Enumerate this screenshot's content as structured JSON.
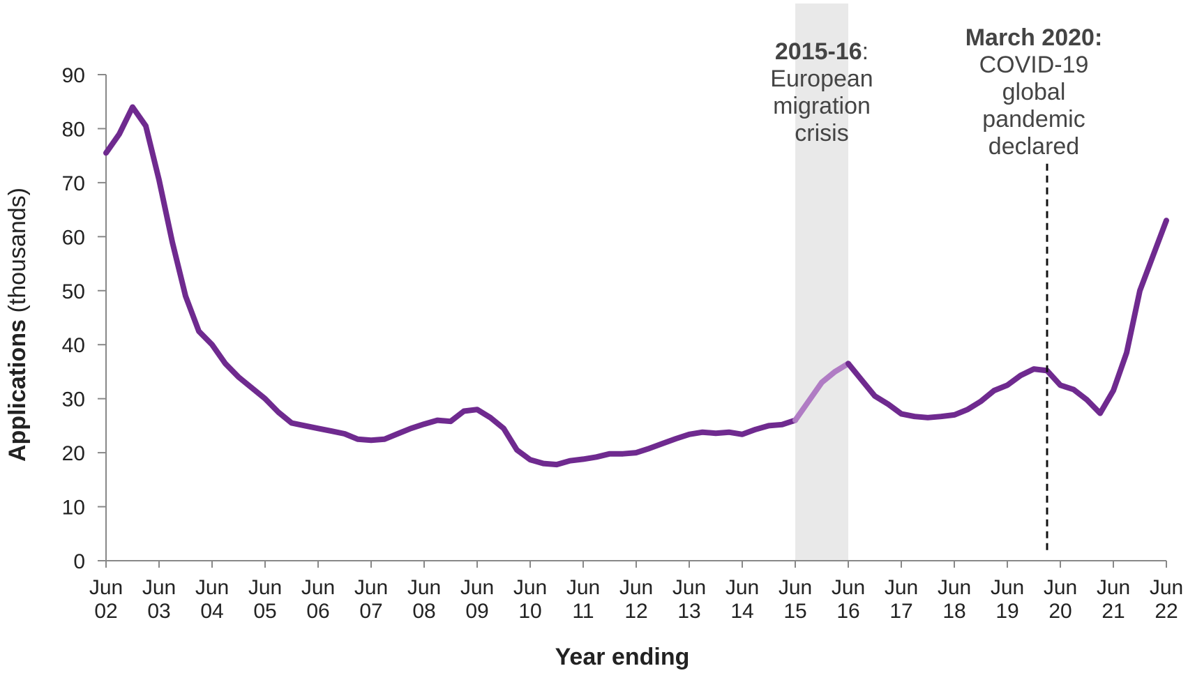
{
  "chart_data": {
    "type": "line",
    "title": "",
    "xlabel": "Year ending",
    "ylabel_bold": "Applications",
    "ylabel_rest": " (thousands)",
    "ylim": [
      0,
      90
    ],
    "yticks": [
      0,
      10,
      20,
      30,
      40,
      50,
      60,
      70,
      80,
      90
    ],
    "xlim": [
      2002.5,
      2022.5
    ],
    "xticks": [
      {
        "x": 2002.5,
        "line1": "Jun",
        "line2": "02"
      },
      {
        "x": 2003.5,
        "line1": "Jun",
        "line2": "03"
      },
      {
        "x": 2004.5,
        "line1": "Jun",
        "line2": "04"
      },
      {
        "x": 2005.5,
        "line1": "Jun",
        "line2": "05"
      },
      {
        "x": 2006.5,
        "line1": "Jun",
        "line2": "06"
      },
      {
        "x": 2007.5,
        "line1": "Jun",
        "line2": "07"
      },
      {
        "x": 2008.5,
        "line1": "Jun",
        "line2": "08"
      },
      {
        "x": 2009.5,
        "line1": "Jun",
        "line2": "09"
      },
      {
        "x": 2010.5,
        "line1": "Jun",
        "line2": "10"
      },
      {
        "x": 2011.5,
        "line1": "Jun",
        "line2": "11"
      },
      {
        "x": 2012.5,
        "line1": "Jun",
        "line2": "12"
      },
      {
        "x": 2013.5,
        "line1": "Jun",
        "line2": "13"
      },
      {
        "x": 2014.5,
        "line1": "Jun",
        "line2": "14"
      },
      {
        "x": 2015.5,
        "line1": "Jun",
        "line2": "15"
      },
      {
        "x": 2016.5,
        "line1": "Jun",
        "line2": "16"
      },
      {
        "x": 2017.5,
        "line1": "Jun",
        "line2": "17"
      },
      {
        "x": 2018.5,
        "line1": "Jun",
        "line2": "18"
      },
      {
        "x": 2019.5,
        "line1": "Jun",
        "line2": "19"
      },
      {
        "x": 2020.5,
        "line1": "Jun",
        "line2": "20"
      },
      {
        "x": 2021.5,
        "line1": "Jun",
        "line2": "21"
      },
      {
        "x": 2022.5,
        "line1": "Jun",
        "line2": "22"
      }
    ],
    "series": [
      {
        "color": "#6f2a8f",
        "highlight_color": "#b07cc4",
        "highlight_range": [
          2015.5,
          2016.5
        ],
        "points": [
          [
            2002.5,
            75.5
          ],
          [
            2002.75,
            79.0
          ],
          [
            2003.0,
            84.0
          ],
          [
            2003.25,
            80.5
          ],
          [
            2003.5,
            70.5
          ],
          [
            2003.75,
            59.0
          ],
          [
            2004.0,
            49.0
          ],
          [
            2004.25,
            42.5
          ],
          [
            2004.5,
            40.0
          ],
          [
            2004.75,
            36.5
          ],
          [
            2005.0,
            34.0
          ],
          [
            2005.25,
            32.0
          ],
          [
            2005.5,
            30.0
          ],
          [
            2005.75,
            27.5
          ],
          [
            2006.0,
            25.5
          ],
          [
            2006.25,
            25.0
          ],
          [
            2006.5,
            24.5
          ],
          [
            2006.75,
            24.0
          ],
          [
            2007.0,
            23.5
          ],
          [
            2007.25,
            22.5
          ],
          [
            2007.5,
            22.3
          ],
          [
            2007.75,
            22.5
          ],
          [
            2008.0,
            23.5
          ],
          [
            2008.25,
            24.5
          ],
          [
            2008.5,
            25.3
          ],
          [
            2008.75,
            26.0
          ],
          [
            2009.0,
            25.8
          ],
          [
            2009.25,
            27.7
          ],
          [
            2009.5,
            28.0
          ],
          [
            2009.75,
            26.5
          ],
          [
            2010.0,
            24.5
          ],
          [
            2010.25,
            20.5
          ],
          [
            2010.5,
            18.7
          ],
          [
            2010.75,
            18.0
          ],
          [
            2011.0,
            17.8
          ],
          [
            2011.25,
            18.5
          ],
          [
            2011.5,
            18.8
          ],
          [
            2011.75,
            19.2
          ],
          [
            2012.0,
            19.8
          ],
          [
            2012.25,
            19.8
          ],
          [
            2012.5,
            20.0
          ],
          [
            2012.75,
            20.8
          ],
          [
            2013.0,
            21.7
          ],
          [
            2013.25,
            22.6
          ],
          [
            2013.5,
            23.4
          ],
          [
            2013.75,
            23.8
          ],
          [
            2014.0,
            23.6
          ],
          [
            2014.25,
            23.8
          ],
          [
            2014.5,
            23.4
          ],
          [
            2014.75,
            24.3
          ],
          [
            2015.0,
            25.0
          ],
          [
            2015.25,
            25.2
          ],
          [
            2015.5,
            26.0
          ],
          [
            2015.75,
            29.5
          ],
          [
            2016.0,
            33.0
          ],
          [
            2016.25,
            35.0
          ],
          [
            2016.5,
            36.5
          ],
          [
            2016.75,
            33.5
          ],
          [
            2017.0,
            30.5
          ],
          [
            2017.25,
            29.0
          ],
          [
            2017.5,
            27.2
          ],
          [
            2017.75,
            26.7
          ],
          [
            2018.0,
            26.5
          ],
          [
            2018.25,
            26.7
          ],
          [
            2018.5,
            27.0
          ],
          [
            2018.75,
            28.0
          ],
          [
            2019.0,
            29.5
          ],
          [
            2019.25,
            31.5
          ],
          [
            2019.5,
            32.5
          ],
          [
            2019.75,
            34.3
          ],
          [
            2020.0,
            35.5
          ],
          [
            2020.25,
            35.2
          ],
          [
            2020.5,
            32.5
          ],
          [
            2020.75,
            31.7
          ],
          [
            2021.0,
            29.8
          ],
          [
            2021.25,
            27.3
          ],
          [
            2021.5,
            31.5
          ],
          [
            2021.75,
            38.5
          ],
          [
            2022.0,
            50.0
          ],
          [
            2022.25,
            56.5
          ],
          [
            2022.5,
            63.0
          ]
        ]
      }
    ],
    "shaded_region": {
      "x0": 2015.5,
      "x1": 2016.5,
      "color": "#e9e9e9"
    },
    "vline": {
      "x": 2020.25,
      "ymax": 73.5,
      "style": "dashed"
    },
    "annotations": [
      {
        "id": "migration",
        "x": 2016.0,
        "lines": [
          {
            "bold": "2015-16",
            "rest": ":"
          },
          {
            "bold": "",
            "rest": "European"
          },
          {
            "bold": "",
            "rest": "migration"
          },
          {
            "bold": "",
            "rest": "crisis"
          }
        ]
      },
      {
        "id": "covid",
        "x": 2020.0,
        "lines": [
          {
            "bold": "March 2020:",
            "rest": ""
          },
          {
            "bold": "",
            "rest": "COVID-19"
          },
          {
            "bold": "",
            "rest": "global"
          },
          {
            "bold": "",
            "rest": "pandemic"
          },
          {
            "bold": "",
            "rest": "declared"
          }
        ]
      }
    ]
  }
}
